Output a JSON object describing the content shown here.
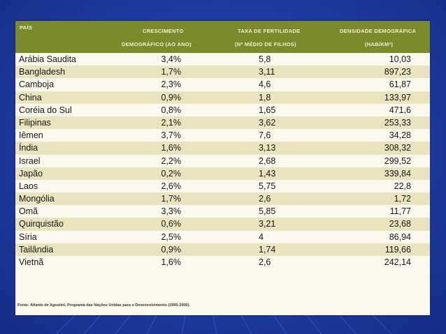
{
  "table": {
    "headers": {
      "country": "País",
      "growth_line1": "Crescimento",
      "growth_line2": "demográfico (ao ano)",
      "fertility_line1": "Taxa de fertilidade",
      "fertility_line2": "(nº médio de filhos)",
      "density_line1": "Densidade demográfica",
      "density_line2": "(hab/km²)"
    },
    "rows": [
      {
        "country": "Arábia Saudita",
        "growth": "3,4%",
        "fertility": "5,8",
        "density": "10,03"
      },
      {
        "country": "Bangladesh",
        "growth": "1,7%",
        "fertility": "3,11",
        "density": "897,23"
      },
      {
        "country": "Camboja",
        "growth": "2,3%",
        "fertility": "4,6",
        "density": "61,87"
      },
      {
        "country": "China",
        "growth": "0,9%",
        "fertility": "1,8",
        "density": "133,97"
      },
      {
        "country": "Coréia do Sul",
        "growth": "0,8%",
        "fertility": "1,65",
        "density": "471,6"
      },
      {
        "country": "Filipinas",
        "growth": "2,1%",
        "fertility": "3,62",
        "density": "253,33"
      },
      {
        "country": "Iêmen",
        "growth": "3,7%",
        "fertility": "7,6",
        "density": "34,28"
      },
      {
        "country": "Índia",
        "growth": "1,6%",
        "fertility": "3,13",
        "density": "308,32"
      },
      {
        "country": "Israel",
        "growth": "2,2%",
        "fertility": "2,68",
        "density": "299,52"
      },
      {
        "country": "Japão",
        "growth": "0,2%",
        "fertility": "1,43",
        "density": "339,84"
      },
      {
        "country": "Laos",
        "growth": "2,6%",
        "fertility": "5,75",
        "density": "22,8"
      },
      {
        "country": "Mongólia",
        "growth": "1,7%",
        "fertility": "2,6",
        "density": "1,72"
      },
      {
        "country": "Omã",
        "growth": "3,3%",
        "fertility": "5,85",
        "density": "11,77"
      },
      {
        "country": "Quirquistão",
        "growth": "0,6%",
        "fertility": "3,21",
        "density": "23,68"
      },
      {
        "country": "Síria",
        "growth": "2,5%",
        "fertility": "4",
        "density": "86,94"
      },
      {
        "country": "Tailândia",
        "growth": "0,9%",
        "fertility": "1,74",
        "density": "119,66"
      },
      {
        "country": "Vietnã",
        "growth": "1,6%",
        "fertility": "2,6",
        "density": "242,14"
      }
    ],
    "source": "Fonte: Atlante de Agostini, Programa das Nações Unidas para o Desenvolvimento (1995-2000)."
  },
  "colors": {
    "slide_background": "#1d3da6",
    "header_band": "#7b8a2b",
    "row_shade": "#e9e4bd",
    "paper": "#fbf8ee"
  }
}
